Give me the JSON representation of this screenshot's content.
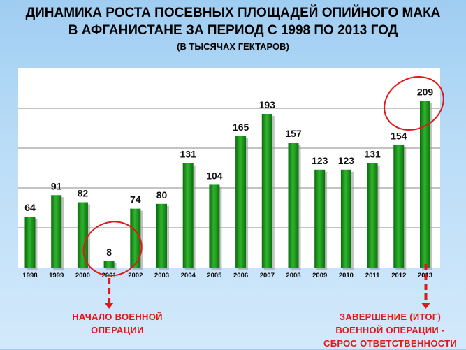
{
  "title": {
    "line1": "ДИНАМИКА РОСТА ПОСЕВНЫХ ПЛОЩАДЕЙ ОПИЙНОГО МАКА",
    "line2": "В АФГАНИСТАНЕ ЗА ПЕРИОД С 1998 ПО 2013 ГОД",
    "line3": "(В ТЫСЯЧАХ ГЕКТАРОВ)"
  },
  "annotations": {
    "left": [
      "НАЧАЛО ВОЕННОЙ",
      "ОПЕРАЦИИ"
    ],
    "right": [
      "ЗАВЕРШЕНИЕ (ИТОГ)",
      "ВОЕННОЙ ОПЕРАЦИИ -",
      "СБРОС ОТВЕТСТВЕННОСТИ"
    ],
    "highlighted_years": [
      "2001",
      "2013"
    ],
    "color": "#e01818"
  },
  "chart_data": {
    "type": "bar",
    "categories": [
      "1998",
      "1999",
      "2000",
      "2001",
      "2002",
      "2003",
      "2004",
      "2005",
      "2006",
      "2007",
      "2008",
      "2009",
      "2010",
      "2011",
      "2012",
      "2013"
    ],
    "values": [
      64,
      91,
      82,
      8,
      74,
      80,
      131,
      104,
      165,
      193,
      157,
      123,
      123,
      131,
      154,
      209
    ],
    "ylim": [
      0,
      250
    ],
    "grid": true,
    "bar_color": "#1f9a1f"
  }
}
